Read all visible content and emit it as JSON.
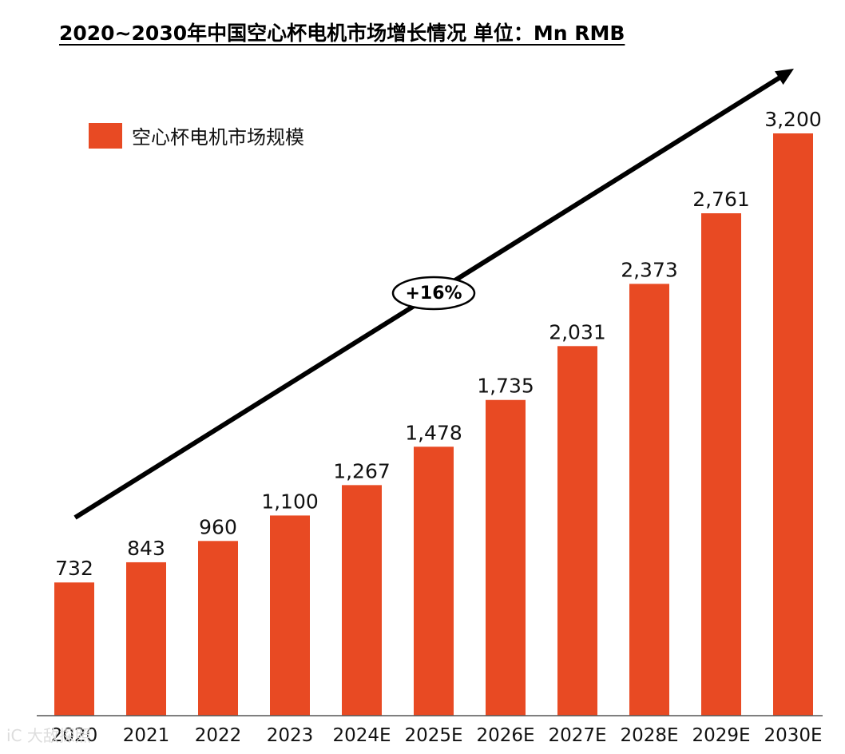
{
  "chart_title": "2020~2030年中国空心杯电机市场增长情况  单位：Mn RMB",
  "watermark": "iC 大敌探照",
  "colors": {
    "bar": "#E84A23",
    "arrow": "#000000",
    "axis": "#555555"
  },
  "chart_data": {
    "type": "bar",
    "title": "2020~2030年中国空心杯电机市场增长情况  单位：Mn RMB",
    "categories": [
      "2020",
      "2021",
      "2022",
      "2023",
      "2024E",
      "2025E",
      "2026E",
      "2027E",
      "2028E",
      "2029E",
      "2030E"
    ],
    "series": [
      {
        "name": "空心杯电机市场规模",
        "values": [
          732,
          843,
          960,
          1100,
          1267,
          1478,
          1735,
          2031,
          2373,
          2761,
          3200
        ]
      }
    ],
    "value_labels": [
      "732",
      "843",
      "960",
      "1,100",
      "1,267",
      "1,478",
      "1,735",
      "2,031",
      "2,373",
      "2,761",
      "3,200"
    ],
    "legend": [
      "空心杯电机市场规模"
    ],
    "legend_position": "top-left",
    "annotation": "+16%",
    "ylim": [
      0,
      3200
    ],
    "xlabel": "",
    "ylabel": "",
    "grid": false
  }
}
